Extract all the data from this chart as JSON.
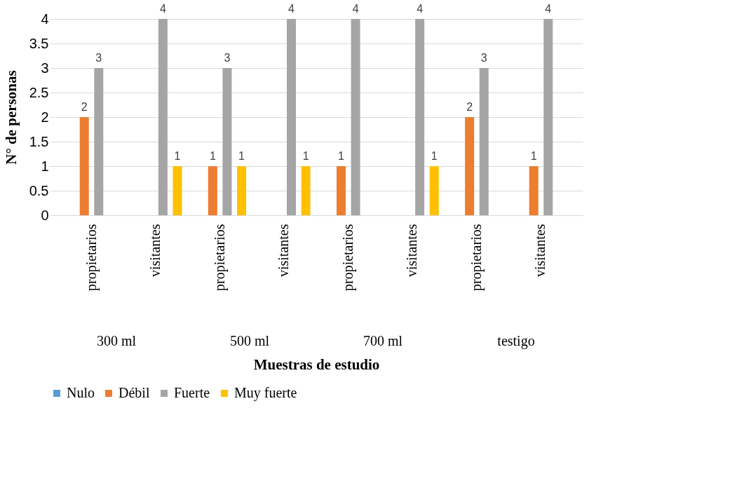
{
  "chart_data": {
    "type": "bar",
    "xlabel": "Muestras de estudio",
    "ylabel": "N° de personas",
    "categories": [
      "propietarios",
      "visitantes",
      "propietarios",
      "visitantes",
      "propietarios",
      "visitantes",
      "propietarios",
      "visitantes"
    ],
    "annotations": [
      "300  ml",
      "500 ml",
      "700 ml",
      "testigo"
    ],
    "series": [
      {
        "name": "Nulo",
        "color": "#5b9bd5",
        "values": [
          null,
          null,
          null,
          null,
          null,
          null,
          null,
          null
        ]
      },
      {
        "name": "Débil",
        "color": "#ed7d31",
        "values": [
          2,
          null,
          1,
          null,
          1,
          null,
          2,
          1
        ]
      },
      {
        "name": "Fuerte",
        "color": "#a5a5a5",
        "values": [
          3,
          4,
          3,
          4,
          4,
          4,
          3,
          4
        ]
      },
      {
        "name": "Muy fuerte",
        "color": "#ffc000",
        "values": [
          null,
          1,
          1,
          1,
          null,
          1,
          null,
          null
        ]
      }
    ],
    "ylim": [
      0,
      4
    ],
    "yticks": [
      0,
      0.5,
      1,
      1.5,
      2,
      2.5,
      3,
      3.5,
      4
    ],
    "grid": "y",
    "legend": "bottom",
    "data_labels": true
  }
}
